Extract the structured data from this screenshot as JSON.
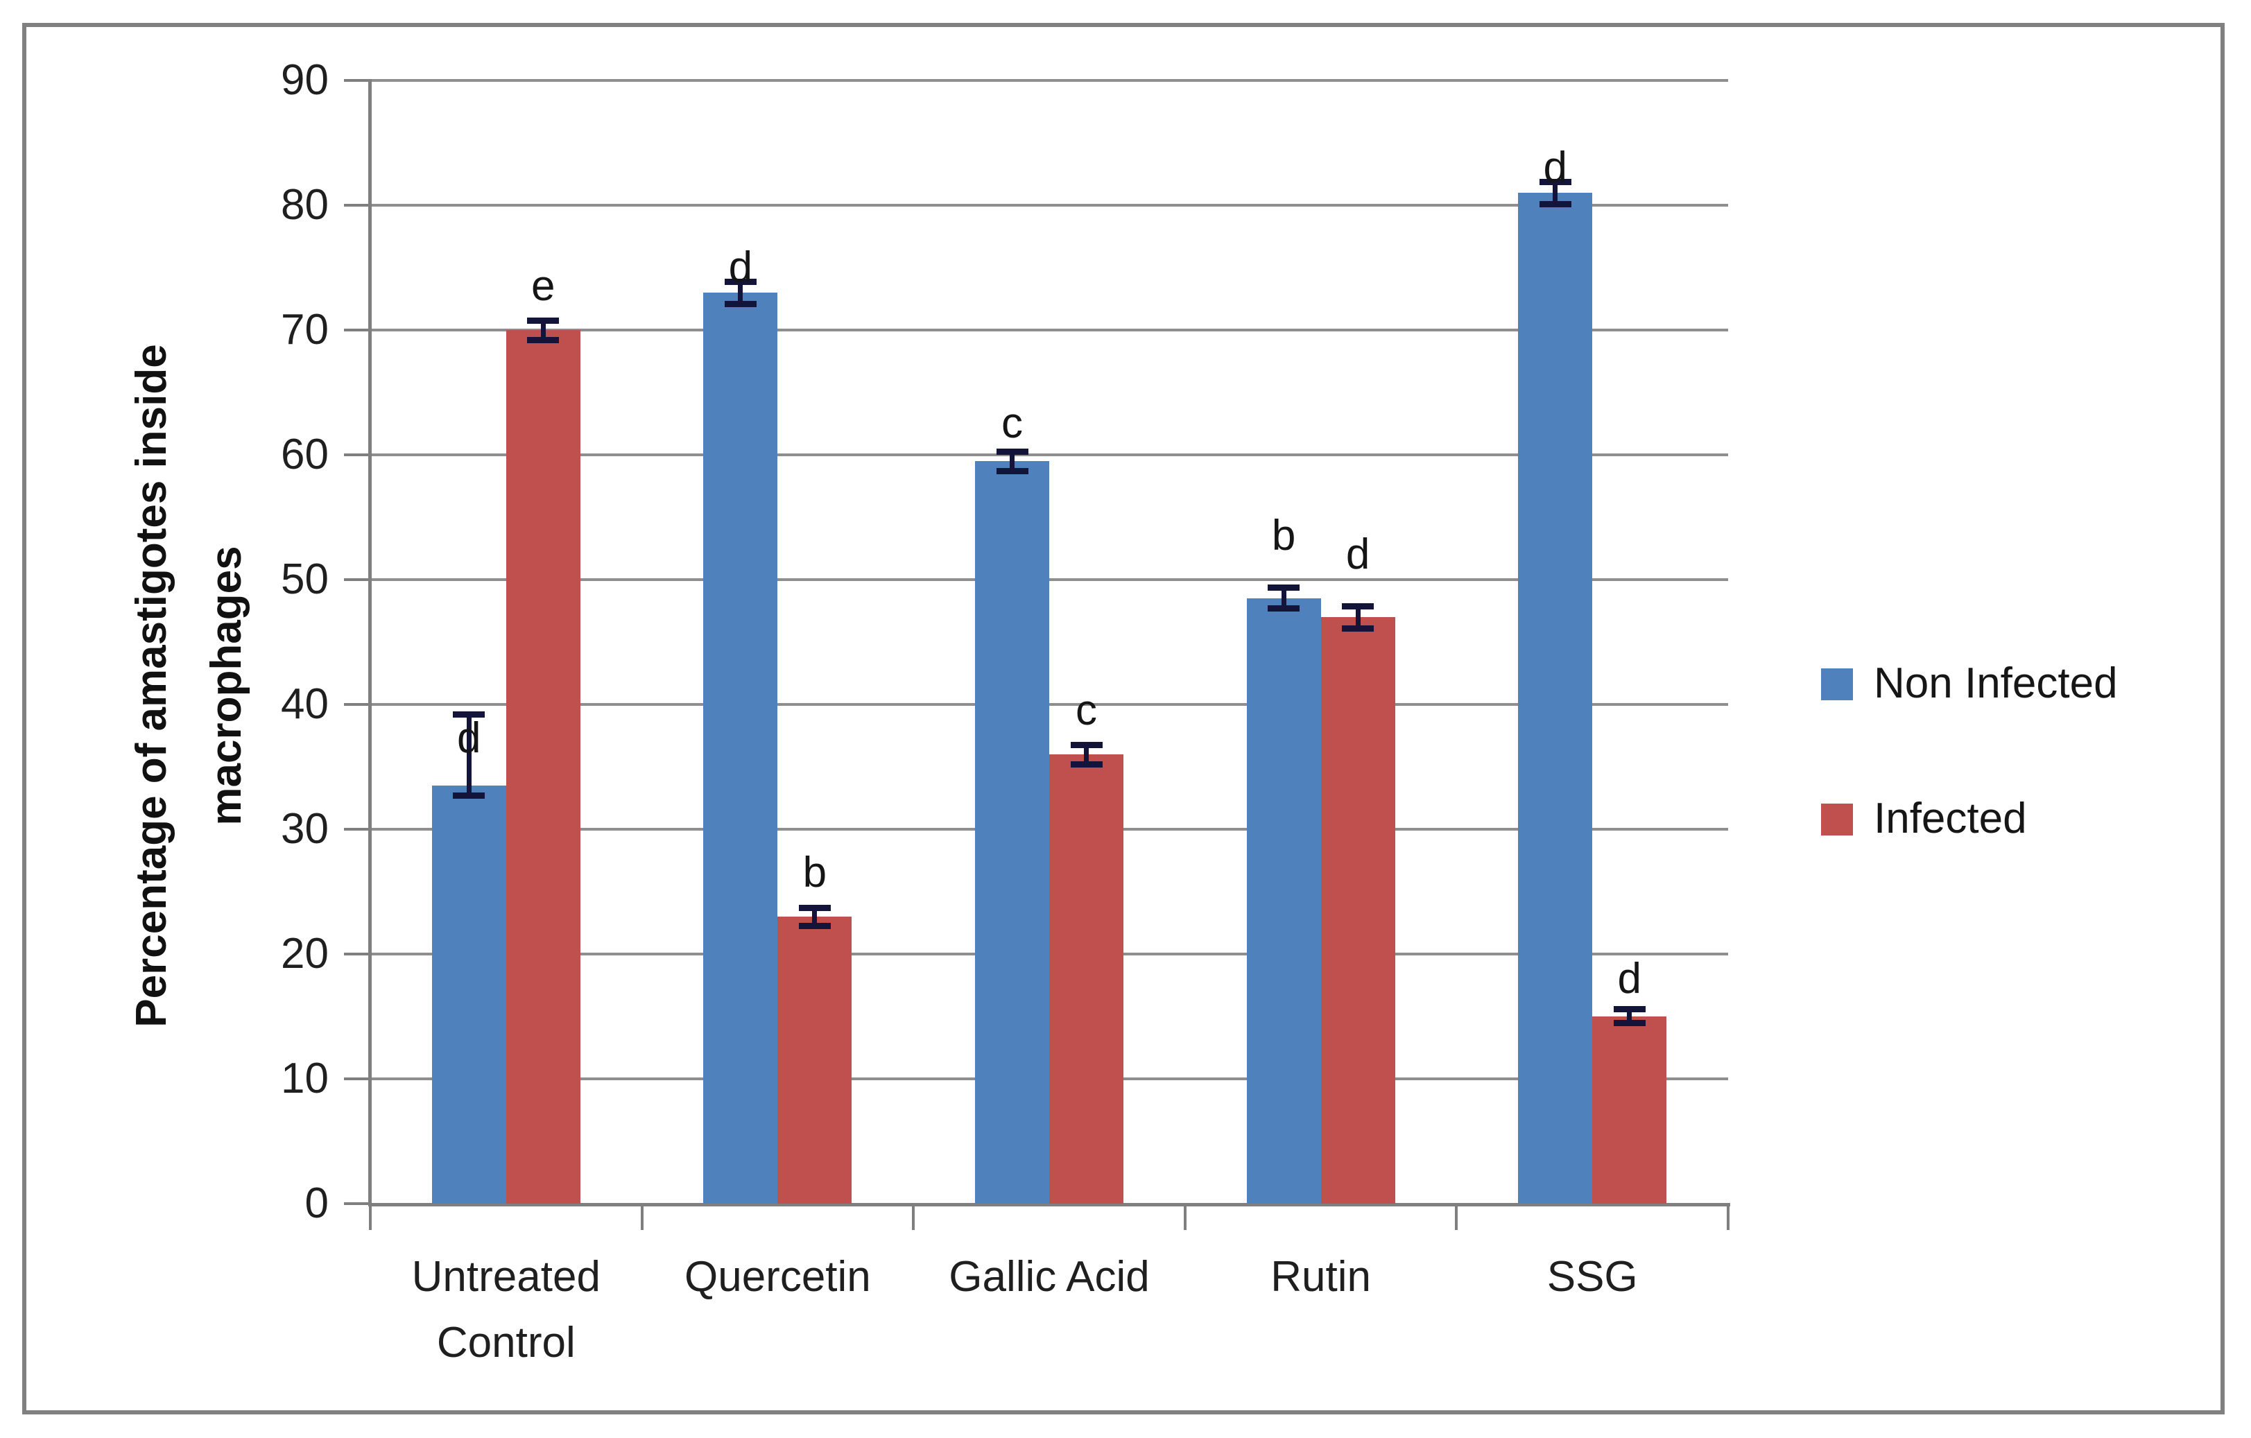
{
  "figure": {
    "background": "#ffffff",
    "border_color": "#808080"
  },
  "colors": {
    "non_infected_bar": "#4F81BD",
    "infected_bar": "#C0504D",
    "gridline": "#8e8e8e",
    "axis": "#7f7f7f",
    "error_bar": "#14143a",
    "text": "#1f1f1f"
  },
  "chart_data": {
    "type": "bar",
    "title": "",
    "xlabel": "",
    "ylabel": "Percentage of amastigotes inside macrophages",
    "ylabel_lines": [
      "Percentage of amastigotes inside",
      "macrophages"
    ],
    "ylim": [
      0,
      90
    ],
    "ytick_step": 10,
    "ytick_labels": [
      "0",
      "10",
      "20",
      "30",
      "40",
      "50",
      "60",
      "70",
      "80",
      "90"
    ],
    "grid": true,
    "legend_position": "right",
    "categories": [
      "Untreated Control",
      "Quercetin",
      "Gallic Acid",
      "Rutin",
      "SSG"
    ],
    "category_label_lines": [
      [
        "Untreated",
        "Control"
      ],
      [
        "Quercetin"
      ],
      [
        "Gallic Acid"
      ],
      [
        "Rutin"
      ],
      [
        "SSG"
      ]
    ],
    "series": [
      {
        "name": "Non Infected",
        "color": "#4F81BD",
        "values": [
          33.5,
          73,
          59.5,
          48.5,
          81
        ],
        "err_low": [
          32.7,
          72.1,
          58.7,
          47.7,
          80.1
        ],
        "err_high": [
          39.2,
          73.9,
          60.3,
          49.4,
          81.9
        ],
        "sig_letters": [
          "d",
          "d",
          "c",
          "b",
          "d"
        ],
        "sig_letter_pos": [
          37.3,
          75,
          62.5,
          53.5,
          83
        ]
      },
      {
        "name": "Infected",
        "color": "#C0504D",
        "values": [
          70,
          23,
          36,
          47,
          15
        ],
        "err_low": [
          69.2,
          22.3,
          35.2,
          46.1,
          14.5
        ],
        "err_high": [
          70.8,
          23.7,
          36.8,
          47.9,
          15.6
        ],
        "sig_letters": [
          "e",
          "b",
          "c",
          "d",
          "d"
        ],
        "sig_letter_pos": [
          73.5,
          26.5,
          39.5,
          52,
          18
        ]
      }
    ]
  },
  "legend": {
    "items": [
      {
        "label": "Non Infected",
        "color": "#4F81BD"
      },
      {
        "label": "Infected",
        "color": "#C0504D"
      }
    ]
  }
}
